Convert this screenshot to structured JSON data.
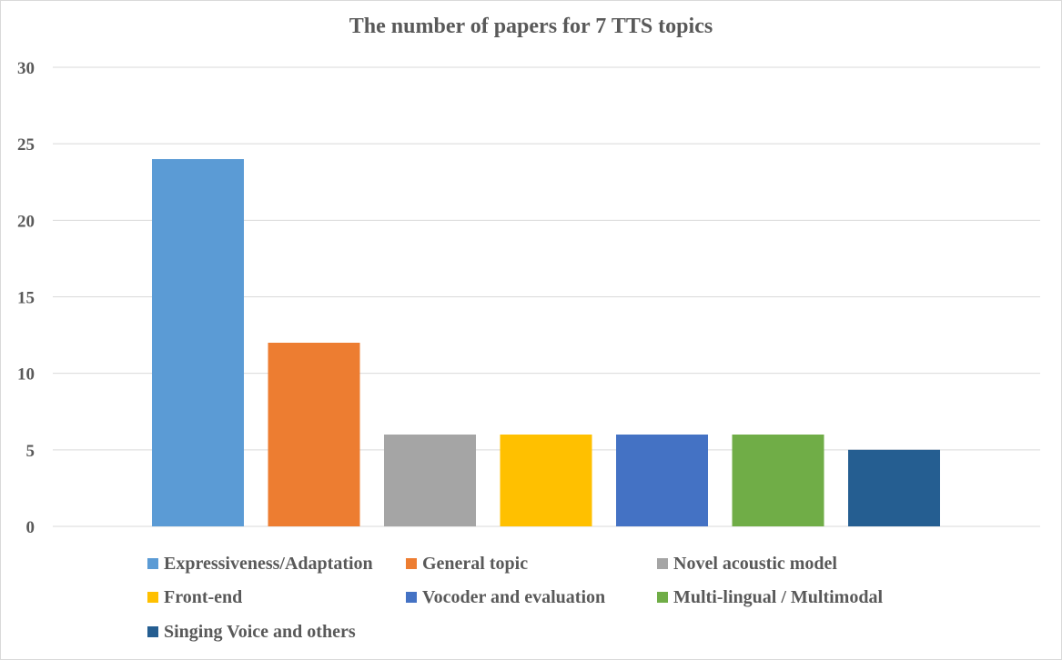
{
  "chart_data": {
    "type": "bar",
    "title": "The number of papers for 7 TTS topics",
    "categories": [
      "Expressiveness/Adaptation",
      "General topic",
      "Novel acoustic model",
      "Front-end",
      "Vocoder and evaluation",
      "Multi-lingual / Multimodal",
      "Singing Voice and others"
    ],
    "values": [
      24,
      12,
      6,
      6,
      6,
      6,
      5
    ],
    "colors": [
      "#5b9bd5",
      "#ed7d31",
      "#a5a5a5",
      "#ffc000",
      "#4472c4",
      "#70ad47",
      "#255e91"
    ],
    "ylim": [
      0,
      30
    ],
    "yticks": [
      0,
      5,
      10,
      15,
      20,
      25,
      30
    ],
    "grid": true,
    "legend_position": "bottom"
  }
}
